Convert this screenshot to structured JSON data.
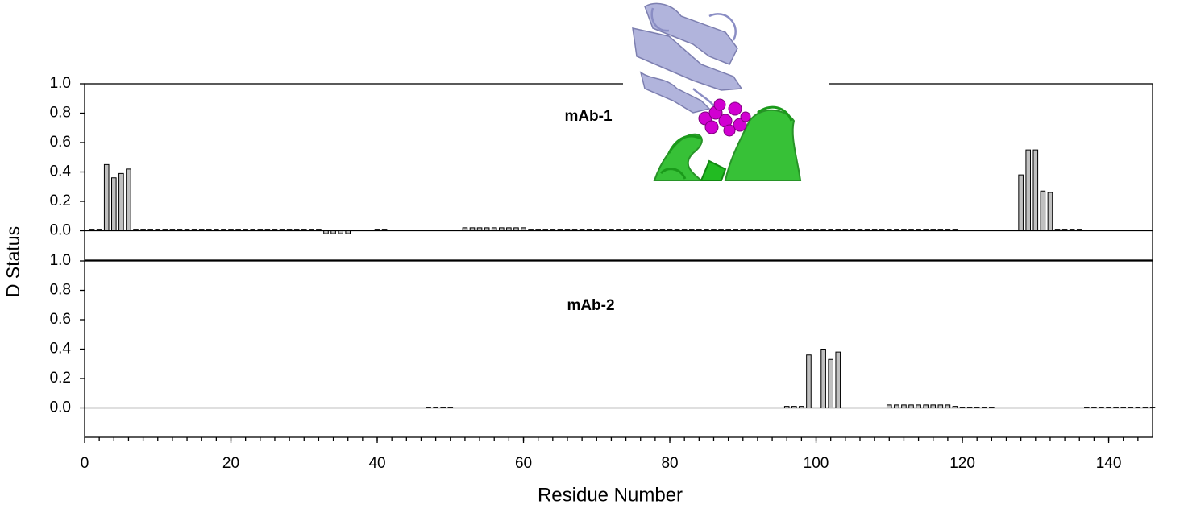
{
  "chart_data": [
    {
      "type": "bar",
      "title": "mAb-1",
      "y_label": "D Status",
      "x": [
        1,
        2,
        3,
        4,
        5,
        6,
        7,
        8,
        9,
        10,
        11,
        12,
        13,
        14,
        15,
        16,
        17,
        18,
        19,
        20,
        21,
        22,
        23,
        24,
        25,
        26,
        27,
        28,
        29,
        30,
        31,
        32,
        33,
        34,
        35,
        36,
        40,
        41,
        52,
        53,
        54,
        55,
        56,
        57,
        58,
        59,
        60,
        61,
        62,
        63,
        64,
        65,
        66,
        67,
        68,
        69,
        70,
        71,
        72,
        73,
        74,
        75,
        76,
        77,
        78,
        79,
        80,
        81,
        82,
        83,
        84,
        85,
        86,
        87,
        88,
        89,
        90,
        91,
        92,
        93,
        94,
        95,
        96,
        97,
        98,
        99,
        100,
        101,
        102,
        103,
        104,
        105,
        106,
        107,
        108,
        109,
        110,
        111,
        112,
        113,
        114,
        115,
        116,
        117,
        118,
        119,
        128,
        129,
        130,
        131,
        132,
        133,
        134,
        135,
        136
      ],
      "values": [
        0.01,
        0.01,
        0.45,
        0.36,
        0.39,
        0.42,
        0.01,
        0.01,
        0.01,
        0.01,
        0.01,
        0.01,
        0.01,
        0.01,
        0.01,
        0.01,
        0.01,
        0.01,
        0.01,
        0.01,
        0.01,
        0.01,
        0.01,
        0.01,
        0.01,
        0.01,
        0.01,
        0.01,
        0.01,
        0.01,
        0.01,
        0.01,
        -0.02,
        -0.02,
        -0.02,
        -0.02,
        0.01,
        0.01,
        0.02,
        0.02,
        0.02,
        0.02,
        0.02,
        0.02,
        0.02,
        0.02,
        0.02,
        0.01,
        0.01,
        0.01,
        0.01,
        0.01,
        0.01,
        0.01,
        0.01,
        0.01,
        0.01,
        0.01,
        0.01,
        0.01,
        0.01,
        0.01,
        0.01,
        0.01,
        0.01,
        0.01,
        0.01,
        0.01,
        0.01,
        0.01,
        0.01,
        0.01,
        0.01,
        0.01,
        0.01,
        0.01,
        0.01,
        0.01,
        0.01,
        0.01,
        0.01,
        0.01,
        0.01,
        0.01,
        0.01,
        0.01,
        0.01,
        0.01,
        0.01,
        0.01,
        0.01,
        0.01,
        0.01,
        0.01,
        0.01,
        0.01,
        0.01,
        0.01,
        0.01,
        0.01,
        0.01,
        0.01,
        0.01,
        0.01,
        0.01,
        0.01,
        0.38,
        0.55,
        0.55,
        0.27,
        0.26,
        0.01,
        0.01,
        0.01,
        0.01
      ],
      "color": "#c0c0c0",
      "xlim": [
        0,
        146
      ],
      "ylim": [
        -0.2,
        1.0
      ],
      "yticks": [
        {
          "value": 0,
          "label": "0.0"
        },
        {
          "value": 0.2,
          "label": "0.2"
        },
        {
          "value": 0.4,
          "label": "0.4"
        },
        {
          "value": 0.6,
          "label": "0.6"
        },
        {
          "value": 0.8,
          "label": "0.8"
        },
        {
          "value": 1,
          "label": "1.0"
        }
      ]
    },
    {
      "type": "bar",
      "title": "mAb-2",
      "x_label": "Residue Number",
      "x": [
        1,
        2,
        3,
        4,
        5,
        6,
        7,
        22,
        23,
        24,
        25,
        26,
        27,
        28,
        29,
        30,
        31,
        32,
        47,
        48,
        49,
        50,
        51,
        52,
        53,
        54,
        55,
        56,
        57,
        58,
        59,
        60,
        61,
        62,
        65,
        96,
        97,
        98,
        99,
        101,
        102,
        103,
        110,
        111,
        112,
        113,
        114,
        115,
        116,
        117,
        118,
        119,
        120,
        121,
        122,
        123,
        124,
        125,
        126,
        127,
        128,
        129,
        130,
        131,
        132,
        133,
        134,
        135,
        136,
        137,
        138,
        139,
        140,
        141,
        142,
        143,
        144,
        145,
        146
      ],
      "values": [
        0,
        0,
        0,
        0,
        0,
        0,
        0,
        0,
        0,
        0,
        0,
        0,
        0,
        0,
        0,
        0,
        0,
        0,
        0.005,
        0.005,
        0.005,
        0.005,
        0,
        0,
        0,
        0,
        0,
        0,
        0,
        0,
        0,
        0,
        0,
        0,
        0,
        0.01,
        0.01,
        0.01,
        0.36,
        0.4,
        0.33,
        0.38,
        0.02,
        0.02,
        0.02,
        0.02,
        0.02,
        0.02,
        0.02,
        0.02,
        0.02,
        0.01,
        0.005,
        0.005,
        0.005,
        0.005,
        0.005,
        0,
        0,
        0,
        0,
        0,
        0,
        0,
        0,
        0,
        0,
        0,
        0,
        0.005,
        0.005,
        0.005,
        0.005,
        0.005,
        0.005,
        0.005,
        0.005,
        0.005,
        0.005
      ],
      "color": "#c0c0c0",
      "xlim": [
        0,
        146
      ],
      "ylim": [
        -0.2,
        1.0
      ],
      "yticks": [
        {
          "value": 0,
          "label": "0.0"
        },
        {
          "value": 0.2,
          "label": "0.2"
        },
        {
          "value": 0.4,
          "label": "0.4"
        },
        {
          "value": 0.6,
          "label": "0.6"
        },
        {
          "value": 0.8,
          "label": "0.8"
        },
        {
          "value": 1,
          "label": "1.0"
        }
      ],
      "xticks": [
        0,
        20,
        40,
        60,
        80,
        100,
        120,
        140
      ]
    }
  ]
}
